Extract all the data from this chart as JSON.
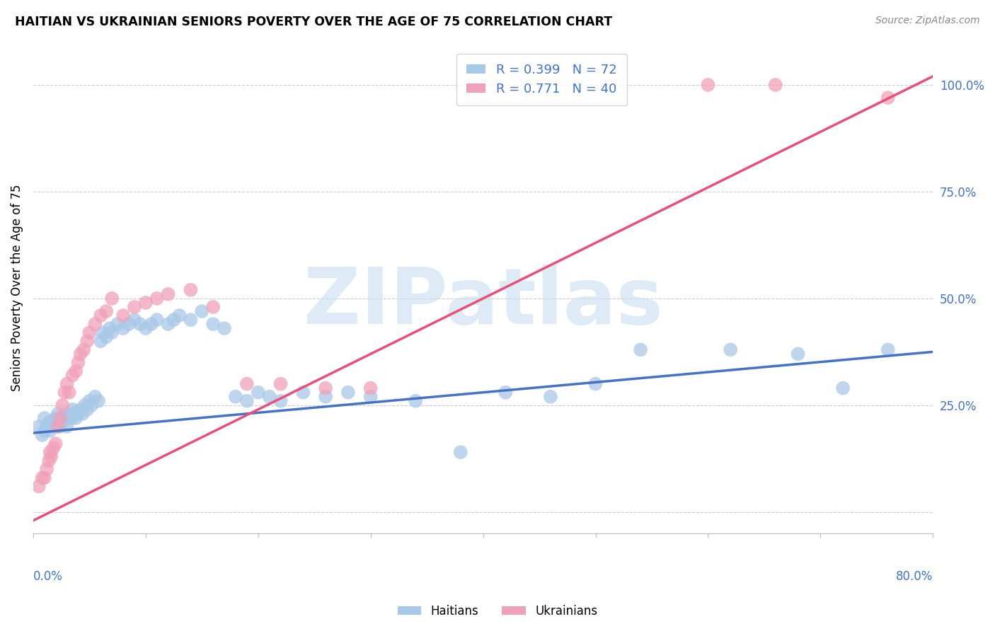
{
  "title": "HAITIAN VS UKRAINIAN SENIORS POVERTY OVER THE AGE OF 75 CORRELATION CHART",
  "source": "Source: ZipAtlas.com",
  "ylabel": "Seniors Poverty Over the Age of 75",
  "xlim": [
    0.0,
    0.8
  ],
  "ylim": [
    -0.05,
    1.1
  ],
  "yticks": [
    0.0,
    0.25,
    0.5,
    0.75,
    1.0
  ],
  "ytick_labels": [
    "",
    "25.0%",
    "50.0%",
    "75.0%",
    "100.0%"
  ],
  "xticks": [
    0.0,
    0.1,
    0.2,
    0.3,
    0.4,
    0.5,
    0.6,
    0.7,
    0.8
  ],
  "watermark": "ZIPatlas",
  "legend_blue_r": "R = 0.399",
  "legend_blue_n": "N = 72",
  "legend_pink_r": "R = 0.771",
  "legend_pink_n": "N = 40",
  "blue_color": "#A8C8E8",
  "pink_color": "#F0A0B8",
  "blue_line_color": "#4472C4",
  "pink_line_color": "#E8507A",
  "haitian_x": [
    0.005,
    0.008,
    0.01,
    0.01,
    0.012,
    0.014,
    0.015,
    0.016,
    0.018,
    0.02,
    0.02,
    0.022,
    0.022,
    0.024,
    0.025,
    0.026,
    0.028,
    0.03,
    0.03,
    0.032,
    0.034,
    0.035,
    0.036,
    0.038,
    0.04,
    0.042,
    0.044,
    0.046,
    0.048,
    0.05,
    0.052,
    0.055,
    0.058,
    0.06,
    0.062,
    0.065,
    0.068,
    0.07,
    0.075,
    0.08,
    0.085,
    0.09,
    0.095,
    0.1,
    0.105,
    0.11,
    0.12,
    0.125,
    0.13,
    0.14,
    0.15,
    0.16,
    0.17,
    0.18,
    0.19,
    0.2,
    0.21,
    0.22,
    0.24,
    0.26,
    0.28,
    0.3,
    0.34,
    0.38,
    0.42,
    0.46,
    0.5,
    0.54,
    0.62,
    0.68,
    0.72,
    0.76
  ],
  "haitian_y": [
    0.2,
    0.18,
    0.19,
    0.22,
    0.2,
    0.21,
    0.19,
    0.2,
    0.21,
    0.2,
    0.22,
    0.21,
    0.23,
    0.2,
    0.22,
    0.21,
    0.22,
    0.2,
    0.23,
    0.22,
    0.22,
    0.24,
    0.23,
    0.22,
    0.23,
    0.24,
    0.23,
    0.25,
    0.24,
    0.26,
    0.25,
    0.27,
    0.26,
    0.4,
    0.42,
    0.41,
    0.43,
    0.42,
    0.44,
    0.43,
    0.44,
    0.45,
    0.44,
    0.43,
    0.44,
    0.45,
    0.44,
    0.45,
    0.46,
    0.45,
    0.47,
    0.44,
    0.43,
    0.27,
    0.26,
    0.28,
    0.27,
    0.26,
    0.28,
    0.27,
    0.28,
    0.27,
    0.26,
    0.14,
    0.28,
    0.27,
    0.3,
    0.38,
    0.38,
    0.37,
    0.29,
    0.38
  ],
  "ukrainian_x": [
    0.005,
    0.008,
    0.01,
    0.012,
    0.014,
    0.015,
    0.016,
    0.018,
    0.02,
    0.022,
    0.024,
    0.026,
    0.028,
    0.03,
    0.032,
    0.035,
    0.038,
    0.04,
    0.042,
    0.045,
    0.048,
    0.05,
    0.055,
    0.06,
    0.065,
    0.07,
    0.08,
    0.09,
    0.1,
    0.11,
    0.12,
    0.14,
    0.16,
    0.19,
    0.22,
    0.26,
    0.3,
    0.6,
    0.66,
    0.76
  ],
  "ukrainian_y": [
    0.06,
    0.08,
    0.08,
    0.1,
    0.12,
    0.14,
    0.13,
    0.15,
    0.16,
    0.2,
    0.22,
    0.25,
    0.28,
    0.3,
    0.28,
    0.32,
    0.33,
    0.35,
    0.37,
    0.38,
    0.4,
    0.42,
    0.44,
    0.46,
    0.47,
    0.5,
    0.46,
    0.48,
    0.49,
    0.5,
    0.51,
    0.52,
    0.48,
    0.3,
    0.3,
    0.29,
    0.29,
    1.0,
    1.0,
    0.97
  ],
  "blue_line_x": [
    0.0,
    0.8
  ],
  "blue_line_y": [
    0.185,
    0.375
  ],
  "pink_line_x": [
    0.0,
    0.8
  ],
  "pink_line_y": [
    -0.02,
    1.02
  ]
}
